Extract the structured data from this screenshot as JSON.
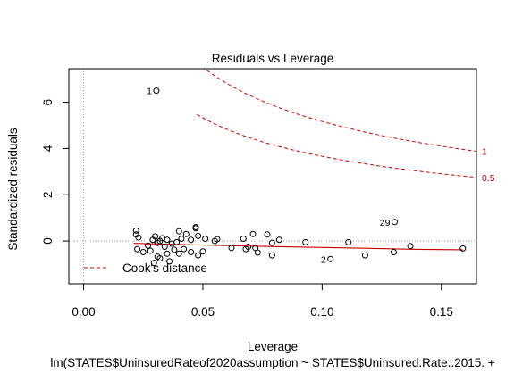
{
  "chart_data": {
    "type": "scatter",
    "title": "Residuals vs Leverage",
    "xlabel": "Leverage",
    "ylabel": "Standardized residuals",
    "subtitle": "lm(STATES$UninsuredRateof2020assumption ~ STATES$Uninsured.Rate..2015. +",
    "xlim": [
      -0.0062,
      0.1647
    ],
    "ylim": [
      -1.85,
      7.45
    ],
    "xticks": [
      0.0,
      0.05,
      0.1,
      0.15
    ],
    "xtick_labels": [
      "0.00",
      "0.05",
      "0.10",
      "0.15"
    ],
    "yticks": [
      0,
      2,
      4,
      6
    ],
    "ytick_labels": [
      "0",
      "2",
      "4",
      "6"
    ],
    "legend": {
      "label": "Cook's distance",
      "placement": "bottom-left",
      "color": "#cc0000"
    },
    "points": [
      {
        "x": 0.0305,
        "y": 6.5,
        "label": "1"
      },
      {
        "x": 0.1304,
        "y": 0.82,
        "label": "29"
      },
      {
        "x": 0.1035,
        "y": -0.78,
        "label": "2"
      },
      {
        "x": 0.022,
        "y": 0.45
      },
      {
        "x": 0.022,
        "y": 0.28
      },
      {
        "x": 0.0225,
        "y": -0.35
      },
      {
        "x": 0.023,
        "y": 0.15
      },
      {
        "x": 0.025,
        "y": -0.48
      },
      {
        "x": 0.027,
        "y": -0.2
      },
      {
        "x": 0.028,
        "y": -0.42
      },
      {
        "x": 0.029,
        "y": 0.05
      },
      {
        "x": 0.0295,
        "y": -0.95
      },
      {
        "x": 0.03,
        "y": 0.2
      },
      {
        "x": 0.031,
        "y": -0.08
      },
      {
        "x": 0.031,
        "y": -0.68
      },
      {
        "x": 0.032,
        "y": -0.75
      },
      {
        "x": 0.032,
        "y": 0.0
      },
      {
        "x": 0.033,
        "y": 0.12
      },
      {
        "x": 0.034,
        "y": -0.25
      },
      {
        "x": 0.035,
        "y": 0.05
      },
      {
        "x": 0.035,
        "y": -0.55
      },
      {
        "x": 0.036,
        "y": -0.88
      },
      {
        "x": 0.037,
        "y": -0.12
      },
      {
        "x": 0.038,
        "y": -0.38
      },
      {
        "x": 0.039,
        "y": -0.05
      },
      {
        "x": 0.04,
        "y": 0.42
      },
      {
        "x": 0.04,
        "y": -0.55
      },
      {
        "x": 0.041,
        "y": 0.1
      },
      {
        "x": 0.042,
        "y": -0.35
      },
      {
        "x": 0.043,
        "y": 0.3
      },
      {
        "x": 0.045,
        "y": 0.05
      },
      {
        "x": 0.045,
        "y": -0.48
      },
      {
        "x": 0.047,
        "y": 0.55
      },
      {
        "x": 0.047,
        "y": 0.6
      },
      {
        "x": 0.048,
        "y": 0.22
      },
      {
        "x": 0.048,
        "y": -0.62
      },
      {
        "x": 0.05,
        "y": -0.45
      },
      {
        "x": 0.051,
        "y": 0.1
      },
      {
        "x": 0.055,
        "y": 0.0
      },
      {
        "x": 0.056,
        "y": 0.08
      },
      {
        "x": 0.062,
        "y": -0.3
      },
      {
        "x": 0.067,
        "y": 0.1
      },
      {
        "x": 0.068,
        "y": -0.35
      },
      {
        "x": 0.069,
        "y": -0.25
      },
      {
        "x": 0.071,
        "y": 0.3
      },
      {
        "x": 0.072,
        "y": -0.3
      },
      {
        "x": 0.073,
        "y": -0.5
      },
      {
        "x": 0.077,
        "y": 0.28
      },
      {
        "x": 0.079,
        "y": -0.08
      },
      {
        "x": 0.079,
        "y": -0.62
      },
      {
        "x": 0.082,
        "y": 0.05
      },
      {
        "x": 0.093,
        "y": -0.05
      },
      {
        "x": 0.111,
        "y": -0.05
      },
      {
        "x": 0.118,
        "y": -0.62
      },
      {
        "x": 0.13,
        "y": -0.48
      },
      {
        "x": 0.137,
        "y": -0.22
      },
      {
        "x": 0.159,
        "y": -0.32
      }
    ],
    "smooth_line": {
      "color": "#cc0000",
      "x": [
        0.021,
        0.04,
        0.06,
        0.08,
        0.1,
        0.12,
        0.14,
        0.159
      ],
      "y": [
        -0.1,
        -0.15,
        -0.2,
        -0.24,
        -0.28,
        -0.32,
        -0.36,
        -0.38
      ]
    },
    "cooks_contours": [
      {
        "label": "1",
        "y_at_right": 3.88,
        "x_start": 0.0335
      },
      {
        "label": "0.5",
        "y_at_right": 2.75,
        "x_start": 0.0475
      }
    ]
  }
}
